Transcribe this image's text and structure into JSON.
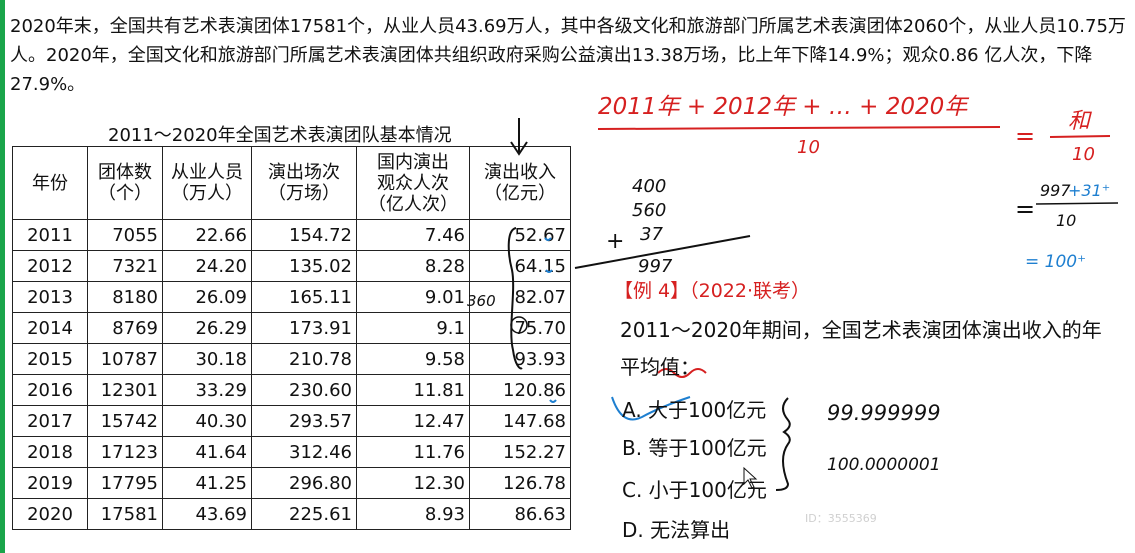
{
  "intro_text": "2020年末，全国共有艺术表演团体17581个，从业人员43.69万人，其中各级文化和旅游部门所属艺术表演团体2060个，从业人员10.75万人。2020年，全国文化和旅游部门所属艺术表演团体共组织政府采购公益演出13.38万场，比上年下降14.9%；观众0.86 亿人次，下降27.9%。",
  "table": {
    "title": "2011～2020年全国艺术表演团队基本情况",
    "headers": [
      "年份",
      "团体数\n（个）",
      "从业人员\n（万人）",
      "演出场次\n（万场）",
      "国内演出\n观众人次\n（亿人次）",
      "演出收入\n（亿元）"
    ],
    "rows": [
      [
        "2011",
        "7055",
        "22.66",
        "154.72",
        "7.46",
        "52.67"
      ],
      [
        "2012",
        "7321",
        "24.20",
        "135.02",
        "8.28",
        "64.15"
      ],
      [
        "2013",
        "8180",
        "26.09",
        "165.11",
        "9.01",
        "82.07"
      ],
      [
        "2014",
        "8769",
        "26.29",
        "173.91",
        "9.1",
        "75.70"
      ],
      [
        "2015",
        "10787",
        "30.18",
        "210.78",
        "9.58",
        "93.93"
      ],
      [
        "2016",
        "12301",
        "33.29",
        "230.60",
        "11.81",
        "120.86"
      ],
      [
        "2017",
        "15742",
        "40.30",
        "293.57",
        "12.47",
        "147.68"
      ],
      [
        "2018",
        "17123",
        "41.64",
        "312.46",
        "11.76",
        "152.27"
      ],
      [
        "2019",
        "17795",
        "41.25",
        "296.80",
        "12.30",
        "126.78"
      ],
      [
        "2020",
        "17581",
        "43.69",
        "225.61",
        "8.93",
        "86.63"
      ]
    ]
  },
  "handwriting": {
    "sum_expr": "2011年 + 2012年 + … + 2020年",
    "denominator": "10",
    "rhs_top": "和",
    "rhs_bottom": "10",
    "n400": "400",
    "n560": "560",
    "n37": "37",
    "plus": "+",
    "n997": "997",
    "frac2_top": "997",
    "frac2_plus": "+31⁺",
    "frac2_bottom": "10",
    "approx": "= 100⁺",
    "eq": "=",
    "n360": "360",
    "val_a": "99.999999",
    "val_c": "100.0000001",
    "accent_red": "#d62020",
    "accent_blue": "#1e7fd0"
  },
  "example": {
    "tag": "【例 4】（2022·联考）",
    "question": "2011～2020年期间，全国艺术表演团体演出收入的年平均值：",
    "options": [
      "A. 大于100亿元",
      "B. 等于100亿元",
      "C. 小于100亿元",
      "D. 无法算出"
    ]
  },
  "watermark": "ID：3555369"
}
